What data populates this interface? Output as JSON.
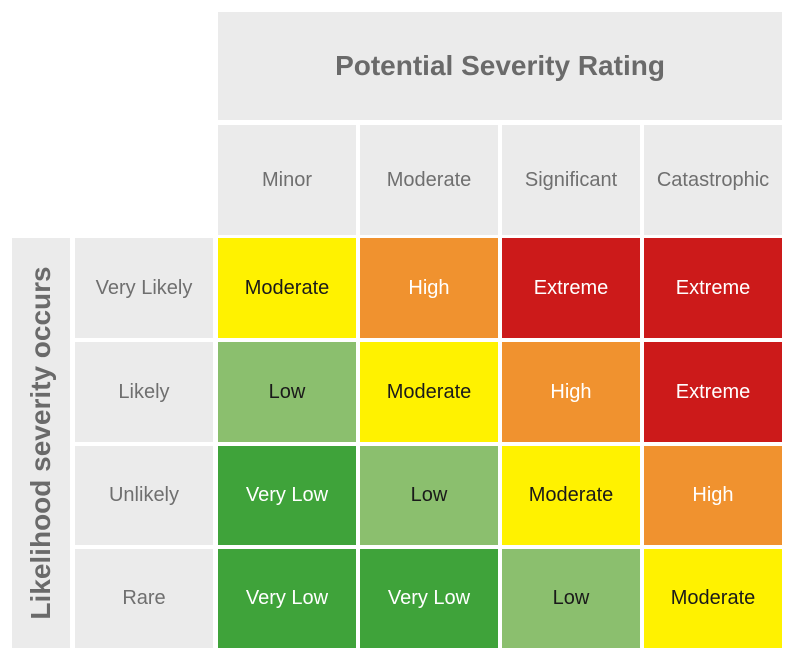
{
  "title": "Potential Severity Rating",
  "axis_label": "Likelihood severity occurs",
  "columns": [
    "Minor",
    "Moderate",
    "Significant",
    "Catastrophic"
  ],
  "rows": [
    "Very Likely",
    "Likely",
    "Unlikely",
    "Rare"
  ],
  "levels": {
    "Very Low": "#3fa33a",
    "Low": "#8bbf6e",
    "Moderate": "#fff200",
    "High": "#f0922f",
    "Extreme": "#cc1a1a"
  },
  "matrix": [
    [
      "Moderate",
      "High",
      "Extreme",
      "Extreme"
    ],
    [
      "Low",
      "Moderate",
      "High",
      "Extreme"
    ],
    [
      "Very Low",
      "Low",
      "Moderate",
      "High"
    ],
    [
      "Very Low",
      "Very Low",
      "Low",
      "Moderate"
    ]
  ]
}
